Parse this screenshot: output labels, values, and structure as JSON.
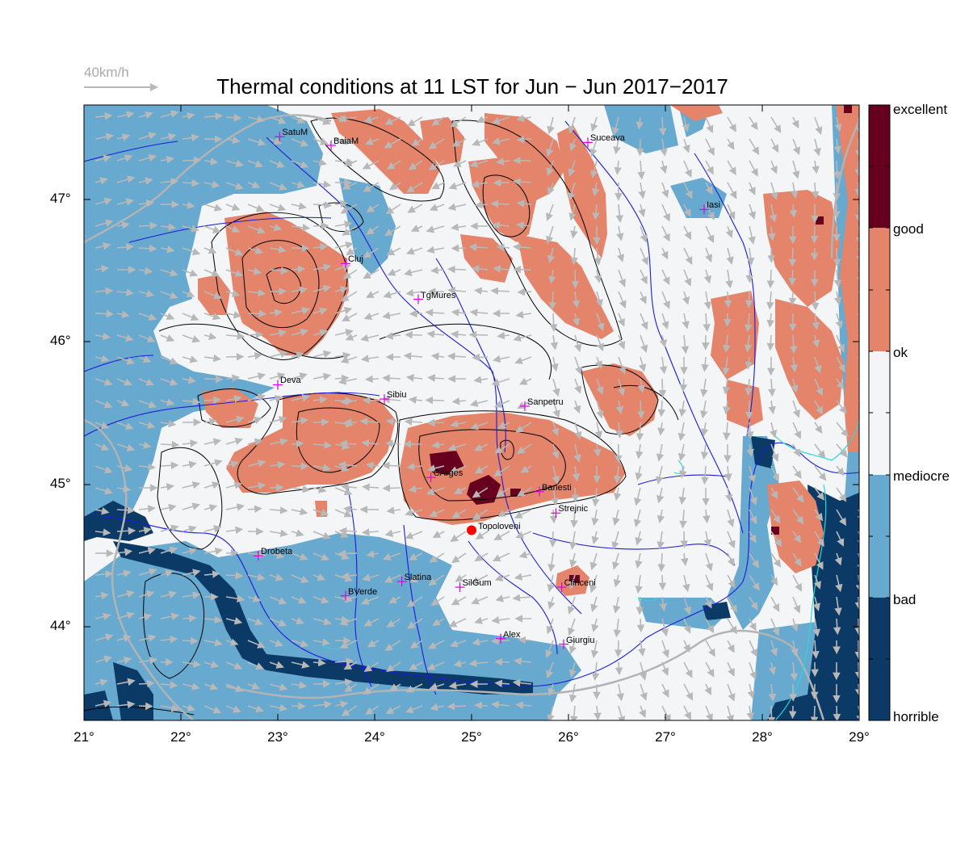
{
  "title": "Thermal conditions at 11 LST for Jun − Jun  2017−2017",
  "wind_key_label": "40km/h",
  "colors": {
    "horrible": "#0b3a66",
    "bad": "#67a9cf",
    "mediocre": "#f4f5f6",
    "ok": "#e4846a",
    "good": "#67001f",
    "river": "#1b1bd6",
    "border": "#b3b3b3",
    "coast": "#27d9d9",
    "wind": "#b8b8b8",
    "marker": "#e100e1",
    "highlight": "#ff0000"
  },
  "lat_ticks": [
    "47°",
    "46°",
    "45°",
    "44°"
  ],
  "lon_ticks": [
    "21°",
    "22°",
    "23°",
    "24°",
    "25°",
    "26°",
    "27°",
    "28°",
    "29°"
  ],
  "colorbar_labels": [
    "excellent",
    "good",
    "ok",
    "mediocre",
    "bad",
    "horrible"
  ],
  "cities": [
    {
      "name": "SatuM",
      "lon": 23.02,
      "lat": 47.44
    },
    {
      "name": "BaiaM",
      "lon": 23.55,
      "lat": 47.38
    },
    {
      "name": "Suceava",
      "lon": 26.2,
      "lat": 47.4
    },
    {
      "name": "Iasi",
      "lon": 27.4,
      "lat": 46.93
    },
    {
      "name": "Cluj",
      "lon": 23.7,
      "lat": 46.55
    },
    {
      "name": "TgMures",
      "lon": 24.45,
      "lat": 46.3
    },
    {
      "name": "Deva",
      "lon": 23.0,
      "lat": 45.7
    },
    {
      "name": "Sibiu",
      "lon": 24.1,
      "lat": 45.6
    },
    {
      "name": "Sanpetru",
      "lon": 25.55,
      "lat": 45.55
    },
    {
      "name": "CArges",
      "lon": 24.58,
      "lat": 45.05
    },
    {
      "name": "Banesti",
      "lon": 25.7,
      "lat": 44.95
    },
    {
      "name": "Strejnic",
      "lon": 25.87,
      "lat": 44.8
    },
    {
      "name": "Drobeta",
      "lon": 22.8,
      "lat": 44.5
    },
    {
      "name": "Slatina",
      "lon": 24.28,
      "lat": 44.32
    },
    {
      "name": "SilGum",
      "lon": 24.88,
      "lat": 44.28
    },
    {
      "name": "Clinceni",
      "lon": 25.93,
      "lat": 44.28
    },
    {
      "name": "BVerde",
      "lon": 23.7,
      "lat": 44.22
    },
    {
      "name": "Alex",
      "lon": 25.3,
      "lat": 43.92
    },
    {
      "name": "Giurgiu",
      "lon": 25.95,
      "lat": 43.88
    }
  ],
  "highlight_site": {
    "name": "Topoloveni",
    "lon": 25.0,
    "lat": 44.68
  }
}
